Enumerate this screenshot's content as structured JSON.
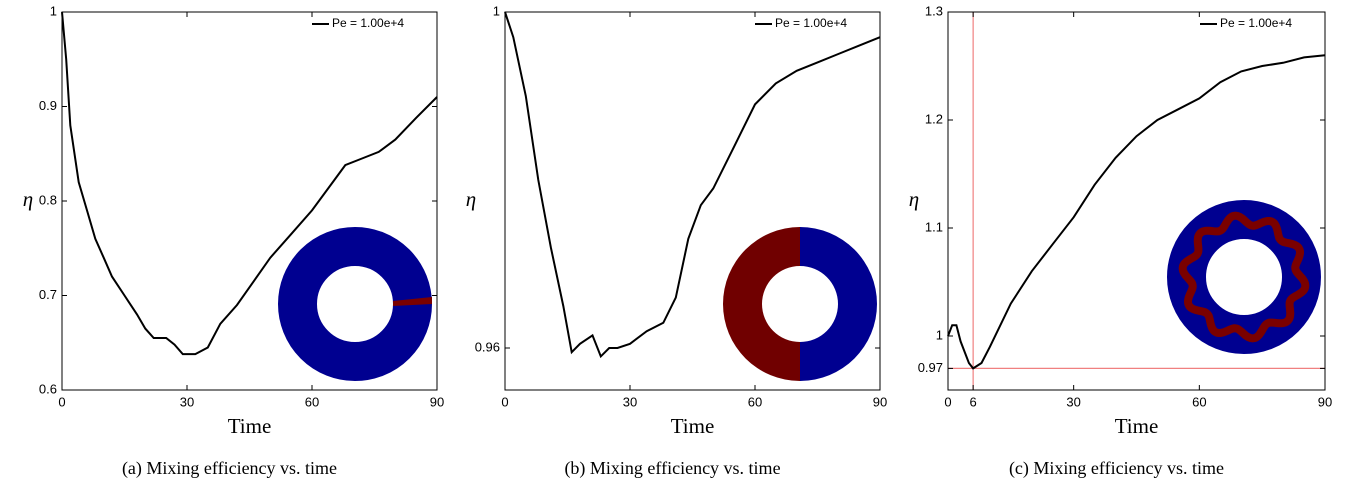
{
  "chart_data": [
    {
      "type": "line",
      "caption": "(a) Mixing efficiency vs. time",
      "xlabel": "Time",
      "ylabel": "η",
      "x": [
        0,
        1,
        2,
        4,
        6,
        8,
        10,
        12,
        15,
        18,
        20,
        22,
        25,
        27,
        29,
        32,
        35,
        38,
        42,
        46,
        50,
        55,
        60,
        65,
        68,
        72,
        76,
        80,
        85,
        90
      ],
      "series": [
        {
          "name": "Pe = 1.00e+4",
          "color": "#000000",
          "values": [
            1.0,
            0.95,
            0.88,
            0.82,
            0.79,
            0.76,
            0.74,
            0.72,
            0.7,
            0.68,
            0.665,
            0.655,
            0.655,
            0.648,
            0.638,
            0.638,
            0.645,
            0.67,
            0.69,
            0.715,
            0.74,
            0.765,
            0.79,
            0.82,
            0.838,
            0.845,
            0.852,
            0.865,
            0.888,
            0.91
          ]
        }
      ],
      "xlim": [
        0,
        90
      ],
      "xticks": [
        0,
        30,
        60,
        90
      ],
      "ylim": [
        0.6,
        1
      ],
      "yticks": [
        0.6,
        0.7,
        0.8,
        0.9,
        1
      ],
      "legend": "upper right"
    },
    {
      "type": "line",
      "caption": "(b) Mixing efficiency vs. time",
      "xlabel": "Time",
      "ylabel": "η",
      "x": [
        0,
        2,
        5,
        8,
        11,
        14,
        16,
        18,
        21,
        23,
        25,
        27,
        30,
        34,
        38,
        41,
        44,
        47,
        50,
        55,
        60,
        65,
        70,
        75,
        80,
        85,
        90
      ],
      "series": [
        {
          "name": "Pe = 1.00e+4",
          "color": "#000000",
          "values": [
            1.0,
            0.997,
            0.99,
            0.98,
            0.972,
            0.965,
            0.9595,
            0.9605,
            0.9615,
            0.959,
            0.96,
            0.96,
            0.9605,
            0.962,
            0.963,
            0.966,
            0.973,
            0.977,
            0.979,
            0.984,
            0.989,
            0.9915,
            0.993,
            0.994,
            0.995,
            0.996,
            0.997
          ]
        }
      ],
      "xlim": [
        0,
        90
      ],
      "xticks": [
        0,
        30,
        60,
        90
      ],
      "ylim": [
        0.955,
        1
      ],
      "yticks": [
        0.96,
        1
      ],
      "legend": "upper right"
    },
    {
      "type": "line",
      "caption": "(c) Mixing efficiency vs. time",
      "xlabel": "Time",
      "ylabel": "η",
      "x": [
        0,
        1,
        2,
        3,
        5,
        6,
        8,
        10,
        15,
        20,
        25,
        30,
        35,
        40,
        45,
        50,
        55,
        60,
        65,
        70,
        75,
        80,
        85,
        90
      ],
      "series": [
        {
          "name": "Pe = 1.00e+4",
          "color": "#000000",
          "values": [
            1.0,
            1.01,
            1.01,
            0.995,
            0.975,
            0.97,
            0.975,
            0.99,
            1.03,
            1.06,
            1.085,
            1.11,
            1.14,
            1.165,
            1.185,
            1.2,
            1.21,
            1.22,
            1.235,
            1.245,
            1.25,
            1.253,
            1.258,
            1.26
          ]
        }
      ],
      "xlim": [
        0,
        90
      ],
      "xticks": [
        0,
        6,
        30,
        60,
        90
      ],
      "ylim": [
        0.95,
        1.3
      ],
      "yticks": [
        0.97,
        1,
        1.1,
        1.2,
        1.3
      ],
      "legend": "upper right",
      "reference_lines": [
        {
          "axis": "x",
          "value": 6
        },
        {
          "axis": "y",
          "value": 0.97
        }
      ],
      "reference_color": "#f08080"
    }
  ]
}
